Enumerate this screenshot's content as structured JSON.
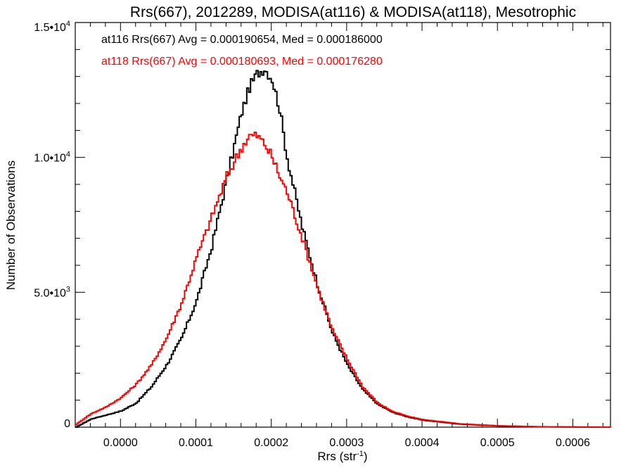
{
  "chart_data": {
    "type": "line",
    "title": "Rrs(667), 2012289, MODISA(at116) & MODISA(at118), Mesotrophic",
    "xlabel": "Rrs (str",
    "xlabel_sup": "-1",
    "xlabel_close": ")",
    "ylabel": "Number of Observations",
    "xlim": [
      -6e-05,
      0.00065
    ],
    "ylim": [
      0,
      15000
    ],
    "x_ticks": [
      {
        "value": 0.0,
        "label": "0.0000"
      },
      {
        "value": 0.0001,
        "label": "0.0001"
      },
      {
        "value": 0.0002,
        "label": "0.0002"
      },
      {
        "value": 0.0003,
        "label": "0.0003"
      },
      {
        "value": 0.0004,
        "label": "0.0004"
      },
      {
        "value": 0.0005,
        "label": "0.0005"
      },
      {
        "value": 0.0006,
        "label": "0.0006"
      }
    ],
    "y_ticks": [
      {
        "value": 0,
        "base": "0",
        "exp": ""
      },
      {
        "value": 5000,
        "base": "5.0•10",
        "exp": "3"
      },
      {
        "value": 10000,
        "base": "1.0•10",
        "exp": "4"
      },
      {
        "value": 15000,
        "base": "1.5•10",
        "exp": "4"
      }
    ],
    "legend": [
      {
        "text": "at116 Rrs(667) Avg = 0.000190654, Med = 0.000186000",
        "color": "#000000"
      },
      {
        "text": "at118 Rrs(667) Avg = 0.000180693, Med = 0.000176280",
        "color": "#ff0000"
      }
    ],
    "style": "step",
    "series": [
      {
        "name": "at116",
        "color": "#000000",
        "x": [
          -6e-05,
          -4e-05,
          -2e-05,
          0.0,
          2e-05,
          4e-05,
          6e-05,
          8e-05,
          0.0001,
          0.00012,
          0.00014,
          0.00016,
          0.00017,
          0.00018,
          0.00019,
          0.0002,
          0.00021,
          0.00022,
          0.00024,
          0.00026,
          0.00028,
          0.0003,
          0.00032,
          0.00034,
          0.00036,
          0.00038,
          0.0004,
          0.00045,
          0.0005,
          0.00055,
          0.0006,
          0.00065
        ],
        "y": [
          0,
          300,
          450,
          600,
          900,
          1500,
          2300,
          3300,
          4700,
          6700,
          9200,
          11700,
          12600,
          13100,
          13300,
          12900,
          11800,
          10000,
          7400,
          5300,
          3500,
          2300,
          1400,
          850,
          550,
          380,
          260,
          110,
          45,
          15,
          5,
          0
        ]
      },
      {
        "name": "at118",
        "color": "#ff0000",
        "x": [
          -6e-05,
          -4e-05,
          -2e-05,
          0.0,
          2e-05,
          4e-05,
          6e-05,
          8e-05,
          0.0001,
          0.00012,
          0.00014,
          0.00016,
          0.00017,
          0.00018,
          0.00019,
          0.0002,
          0.00021,
          0.00022,
          0.00024,
          0.00026,
          0.00028,
          0.0003,
          0.00032,
          0.00034,
          0.00036,
          0.00038,
          0.0004,
          0.00045,
          0.0005,
          0.00055,
          0.0006,
          0.00065
        ],
        "y": [
          100,
          500,
          750,
          1100,
          1600,
          2300,
          3300,
          4600,
          6300,
          7800,
          9300,
          10400,
          10800,
          10800,
          10500,
          10000,
          9300,
          8700,
          7000,
          5200,
          3600,
          2500,
          1500,
          900,
          580,
          400,
          280,
          120,
          50,
          18,
          6,
          0
        ]
      }
    ]
  }
}
